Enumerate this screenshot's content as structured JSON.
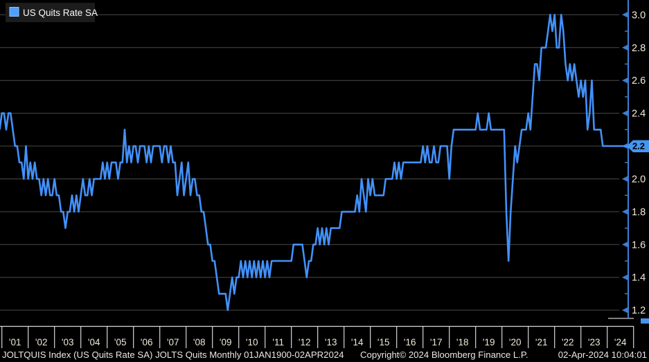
{
  "page": {
    "background": "#000000"
  },
  "legend": {
    "label": "US Quits Rate SA",
    "swatch_color": "#4da0ff",
    "box_color": "#1c1c1c"
  },
  "y_axis": {
    "tick_labels": [
      "3.0",
      "2.8",
      "2.6",
      "2.4",
      "2.2",
      "2.0",
      "1.8",
      "1.6",
      "1.4",
      "1.2"
    ],
    "last_value_label": "2.2",
    "axis_color": "#3a7fd6",
    "label_color": "#f0e9d7"
  },
  "x_axis": {
    "year_labels": [
      "'01",
      "'02",
      "'03",
      "'04",
      "'05",
      "'06",
      "'07",
      "'08",
      "'09",
      "'10",
      "'11",
      "'12",
      "'13",
      "'14",
      "'15",
      "'16",
      "'17",
      "'18",
      "'19",
      "'20",
      "'21",
      "'22",
      "'23",
      "'24"
    ],
    "tick_color": "#d8d8d8"
  },
  "footer": {
    "left": "JOLTQUIS Index (US Quits Rate SA) JOLTS Quits  Monthly 01JAN1900-02APR2024",
    "copyright": "Copyright© 2024 Bloomberg Finance L.P.",
    "timestamp": "02-Apr-2024 10:04:01"
  },
  "chart_data": {
    "type": "line",
    "title": "US Quits Rate SA",
    "frequency": "monthly",
    "unit": "percent",
    "start": "2000-12",
    "end": "2024-02",
    "ylim": [
      1.15,
      3.09
    ],
    "y_ticks": [
      1.2,
      1.4,
      1.6,
      1.8,
      2.0,
      2.2,
      2.4,
      2.6,
      2.8,
      3.0
    ],
    "grid": true,
    "legend_position": "top-left",
    "line_color": "#4291fa",
    "grid_color": "#4a4a4a",
    "last_value": 2.2,
    "series": [
      {
        "name": "US Quits Rate SA",
        "values": [
          2.3,
          2.4,
          2.4,
          2.3,
          2.4,
          2.4,
          2.3,
          2.2,
          2.2,
          2.1,
          2.1,
          2.0,
          2.2,
          2.0,
          2.1,
          2.0,
          2.1,
          2.0,
          2.0,
          1.9,
          2.0,
          1.9,
          2.0,
          1.9,
          1.9,
          2.0,
          1.9,
          1.9,
          1.8,
          1.8,
          1.7,
          1.8,
          1.8,
          1.9,
          1.8,
          1.9,
          1.8,
          1.9,
          2.0,
          1.9,
          1.9,
          2.0,
          1.9,
          2.0,
          2.0,
          2.0,
          2.0,
          2.1,
          2.0,
          2.1,
          2.0,
          2.1,
          2.1,
          2.1,
          2.0,
          2.1,
          2.1,
          2.3,
          2.1,
          2.2,
          2.1,
          2.2,
          2.2,
          2.1,
          2.2,
          2.2,
          2.2,
          2.1,
          2.2,
          2.1,
          2.2,
          2.2,
          2.2,
          2.2,
          2.1,
          2.2,
          2.2,
          2.1,
          2.2,
          2.1,
          2.1,
          1.9,
          2.0,
          2.1,
          1.9,
          2.0,
          2.1,
          1.9,
          2.0,
          2.0,
          1.9,
          1.9,
          1.8,
          1.8,
          1.7,
          1.6,
          1.6,
          1.5,
          1.5,
          1.4,
          1.3,
          1.3,
          1.3,
          1.3,
          1.2,
          1.3,
          1.4,
          1.3,
          1.4,
          1.4,
          1.5,
          1.4,
          1.5,
          1.4,
          1.5,
          1.4,
          1.5,
          1.4,
          1.5,
          1.4,
          1.5,
          1.4,
          1.5,
          1.4,
          1.5,
          1.5,
          1.5,
          1.5,
          1.5,
          1.5,
          1.5,
          1.5,
          1.5,
          1.5,
          1.6,
          1.6,
          1.6,
          1.6,
          1.6,
          1.5,
          1.4,
          1.5,
          1.5,
          1.6,
          1.6,
          1.7,
          1.6,
          1.7,
          1.6,
          1.7,
          1.6,
          1.7,
          1.7,
          1.7,
          1.7,
          1.7,
          1.8,
          1.8,
          1.8,
          1.8,
          1.8,
          1.8,
          1.8,
          1.9,
          1.8,
          2.0,
          1.9,
          1.8,
          2.0,
          1.9,
          2.0,
          1.9,
          1.9,
          1.9,
          1.9,
          1.9,
          2.0,
          2.0,
          2.0,
          2.0,
          2.1,
          2.0,
          2.1,
          2.0,
          2.1,
          2.1,
          2.1,
          2.1,
          2.1,
          2.1,
          2.1,
          2.1,
          2.1,
          2.2,
          2.1,
          2.2,
          2.1,
          2.1,
          2.2,
          2.1,
          2.1,
          2.2,
          2.2,
          2.2,
          2.2,
          2.0,
          2.2,
          2.3,
          2.3,
          2.3,
          2.3,
          2.3,
          2.3,
          2.3,
          2.3,
          2.3,
          2.3,
          2.3,
          2.4,
          2.3,
          2.3,
          2.3,
          2.3,
          2.4,
          2.3,
          2.3,
          2.3,
          2.3,
          2.3,
          2.3,
          2.3,
          1.8,
          1.5,
          1.8,
          2.0,
          2.2,
          2.1,
          2.2,
          2.3,
          2.3,
          2.3,
          2.4,
          2.3,
          2.5,
          2.7,
          2.7,
          2.6,
          2.8,
          2.8,
          2.8,
          2.9,
          3.0,
          2.9,
          3.0,
          2.8,
          2.8,
          3.0,
          2.9,
          2.7,
          2.6,
          2.7,
          2.6,
          2.7,
          2.6,
          2.5,
          2.6,
          2.5,
          2.6,
          2.3,
          2.4,
          2.6,
          2.3,
          2.3,
          2.3,
          2.3,
          2.2,
          2.2,
          2.2,
          2.2
        ]
      }
    ]
  }
}
